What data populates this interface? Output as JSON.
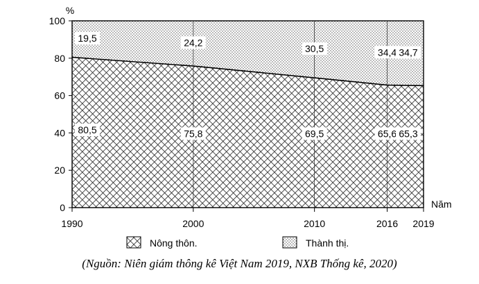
{
  "chart_data": {
    "type": "area",
    "stacked": true,
    "ylabel": "%",
    "xlabel": "Năm",
    "ylim": [
      0,
      100
    ],
    "yticks": [
      0,
      20,
      40,
      60,
      80,
      100
    ],
    "x": [
      1990,
      2000,
      2010,
      2016,
      2019
    ],
    "x_tick_labels": [
      "1990",
      "2000",
      "2010",
      "2016",
      "2019"
    ],
    "series": [
      {
        "name": "Nông thôn.",
        "values": [
          80.5,
          75.8,
          69.5,
          65.6,
          65.3
        ],
        "pattern": "brick-crosshatch"
      },
      {
        "name": "Thành thị.",
        "values": [
          19.5,
          24.2,
          30.5,
          34.4,
          34.7
        ],
        "pattern": "dots"
      }
    ],
    "data_labels": {
      "rural": [
        "80,5",
        "75,8",
        "69,5",
        "65,6",
        "65,3"
      ],
      "urban": [
        "19,5",
        "24,2",
        "30,5",
        "34,4",
        "34,7"
      ]
    },
    "legend_position": "bottom",
    "grid": false,
    "source_note": "(Nguồn: Niên giám thông kê Việt Nam 2019, NXB Thống kê, 2020)"
  }
}
